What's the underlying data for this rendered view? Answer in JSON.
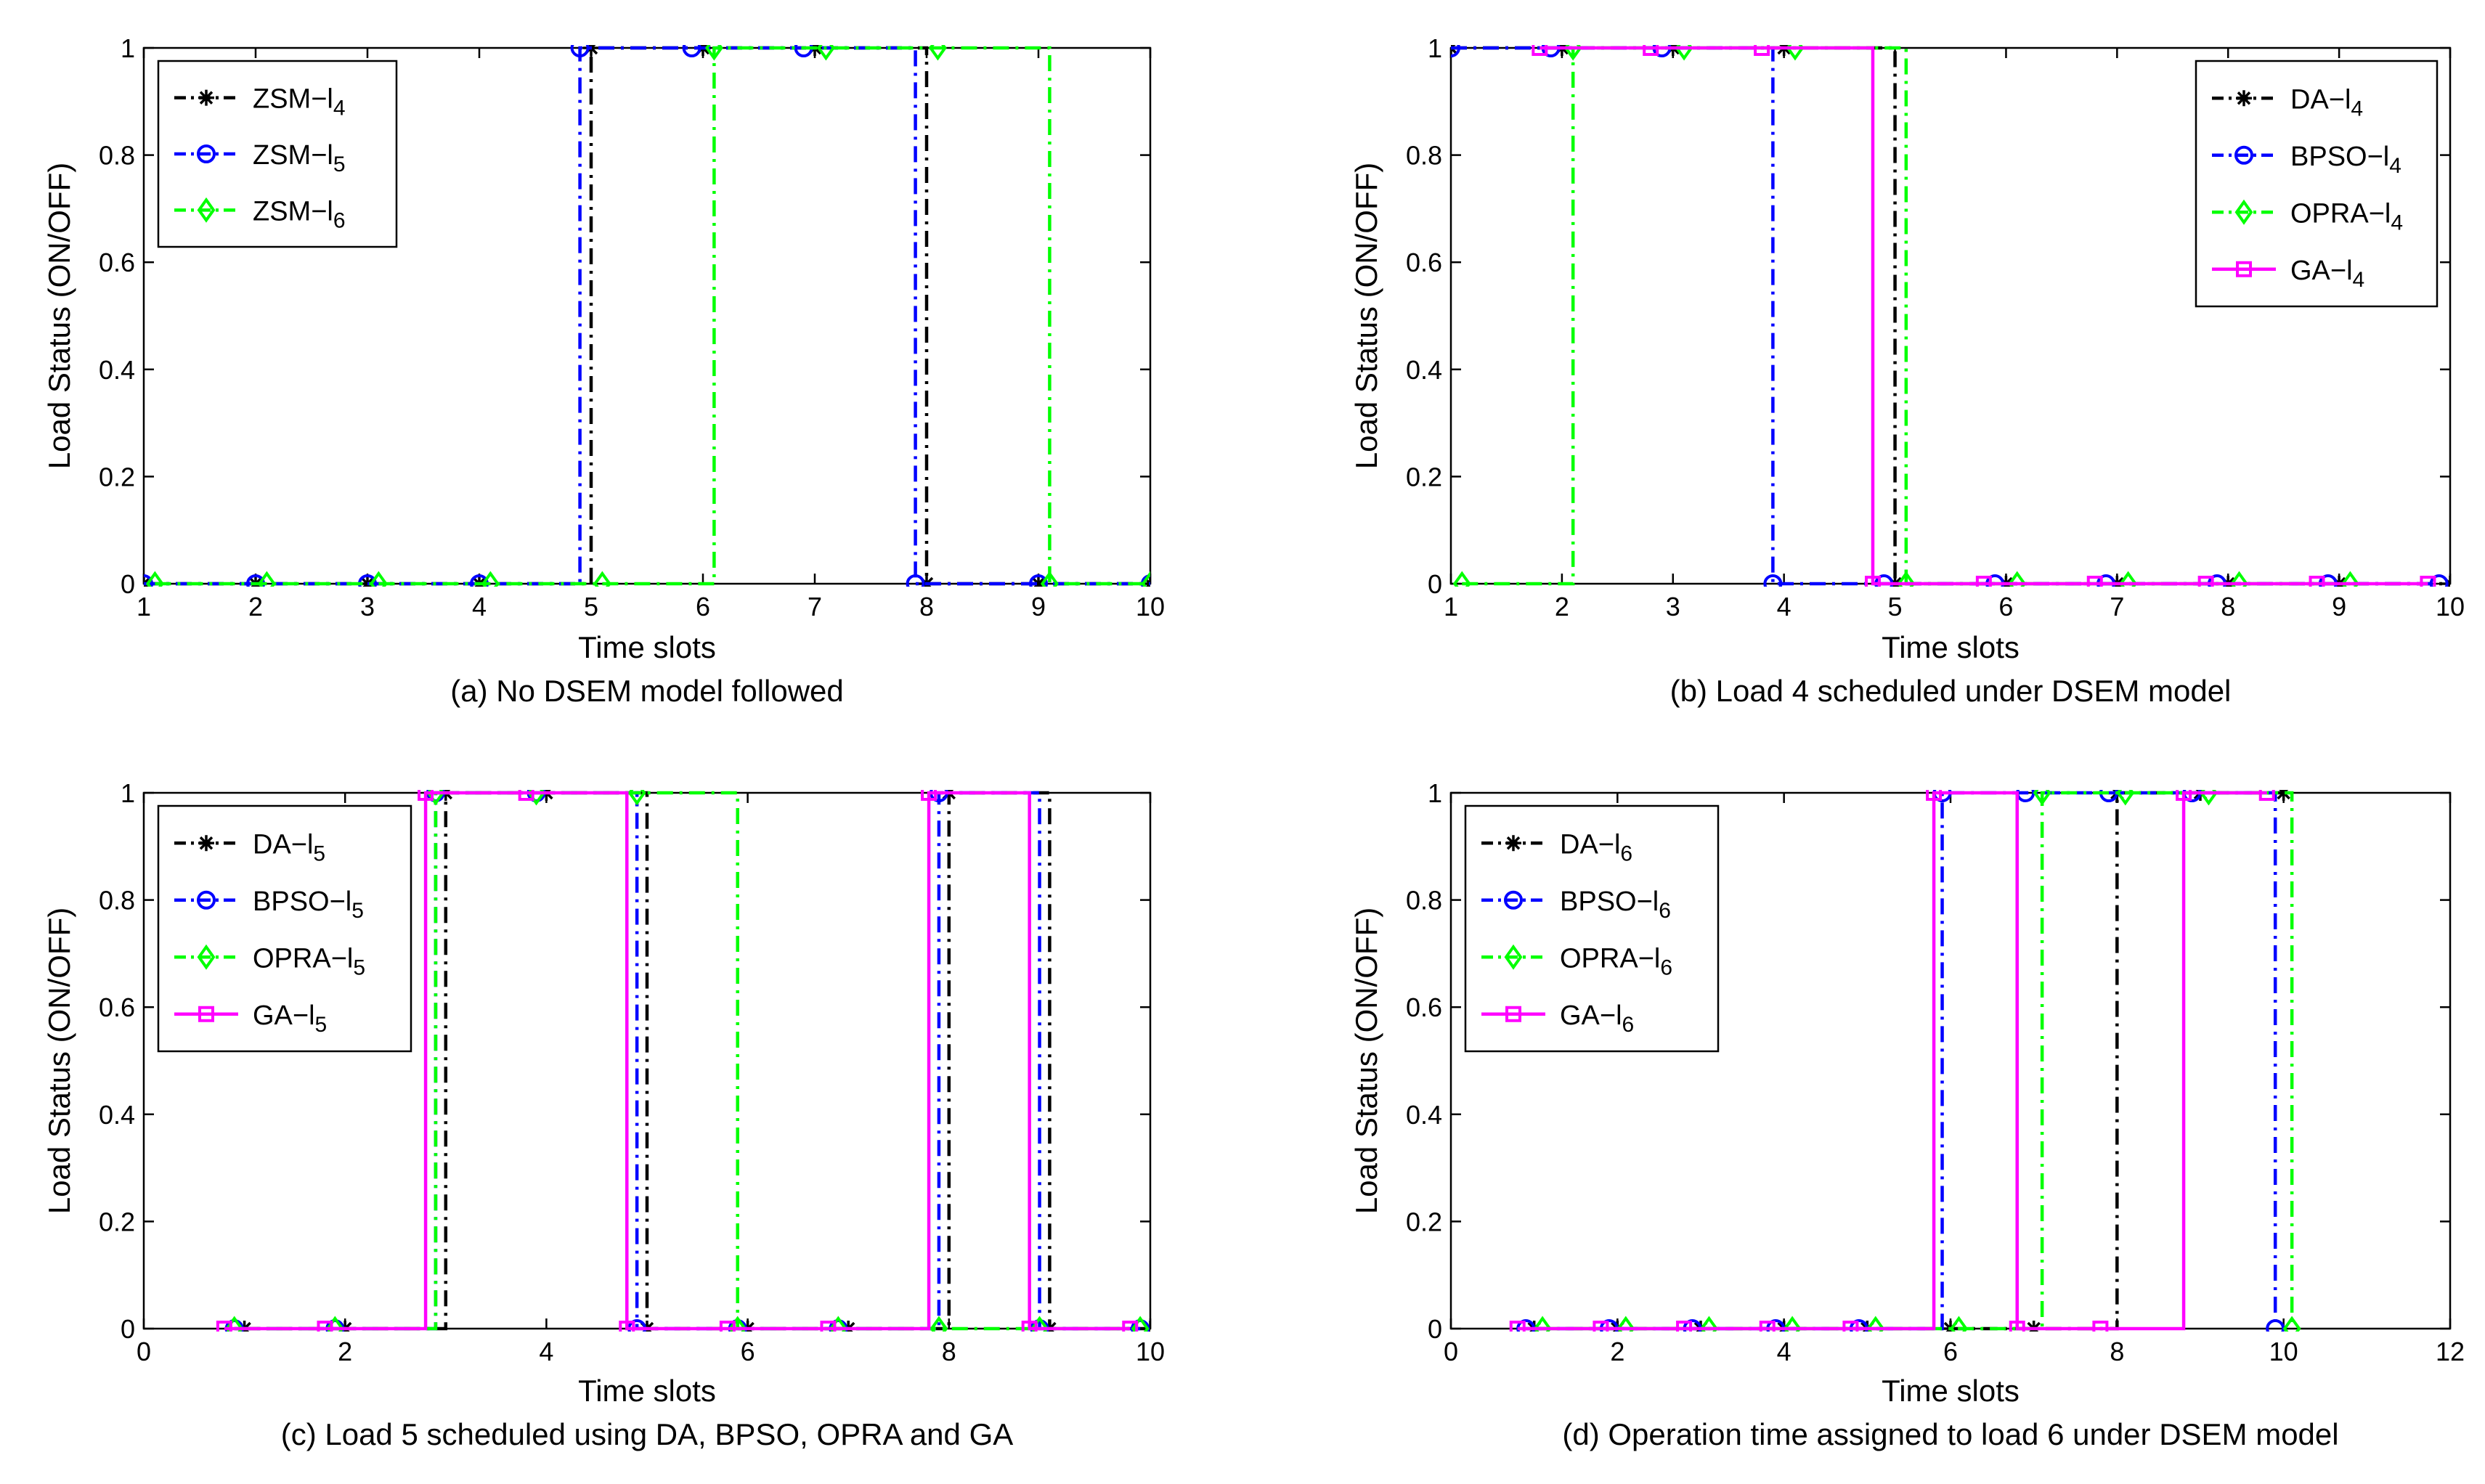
{
  "colors": {
    "black": "#000000",
    "blue": "#0000ff",
    "green": "#00ff00",
    "magenta": "#ff00ff",
    "axis": "#000000",
    "background": "#ffffff"
  },
  "chart_data": [
    {
      "id": "a",
      "type": "line",
      "step": true,
      "caption": "(a) No DSEM model followed",
      "xlabel": "Time slots",
      "ylabel": "Load Status (ON/OFF)",
      "xlim": [
        1,
        10
      ],
      "ylim": [
        0,
        1
      ],
      "xticks": [
        1,
        2,
        3,
        4,
        5,
        6,
        7,
        8,
        9,
        10
      ],
      "yticks": [
        0,
        0.2,
        0.4,
        0.6,
        0.8,
        1
      ],
      "legend_position": "top-left",
      "series": [
        {
          "name": "ZSM−l",
          "sub": "4",
          "color": "#000000",
          "marker": "star",
          "dash": "dashdot",
          "x": [
            1,
            2,
            3,
            4,
            5,
            6,
            7,
            8,
            9,
            10
          ],
          "y": [
            0,
            0,
            0,
            0,
            1,
            1,
            1,
            0,
            0,
            0
          ]
        },
        {
          "name": "ZSM−l",
          "sub": "5",
          "color": "#0000ff",
          "marker": "circle",
          "dash": "dashdot",
          "x": [
            1,
            2,
            3,
            4,
            4.9,
            5.9,
            6.9,
            7.9,
            9,
            10
          ],
          "y": [
            0,
            0,
            0,
            0,
            1,
            1,
            1,
            0,
            0,
            0
          ]
        },
        {
          "name": "ZSM−l",
          "sub": "6",
          "color": "#00ff00",
          "marker": "diamond",
          "dash": "dashdot",
          "x": [
            1.1,
            2.1,
            3.1,
            4.1,
            5.1,
            6.1,
            7.1,
            8.1,
            9.1,
            10
          ],
          "y": [
            0,
            0,
            0,
            0,
            0,
            1,
            1,
            1,
            0,
            0
          ]
        }
      ]
    },
    {
      "id": "b",
      "type": "line",
      "step": true,
      "caption": "(b) Load 4 scheduled under DSEM model",
      "xlabel": "Time slots",
      "ylabel": "Load Status (ON/OFF)",
      "xlim": [
        1,
        10
      ],
      "ylim": [
        0,
        1
      ],
      "xticks": [
        1,
        2,
        3,
        4,
        5,
        6,
        7,
        8,
        9,
        10
      ],
      "yticks": [
        0,
        0.2,
        0.4,
        0.6,
        0.8,
        1
      ],
      "legend_position": "top-right",
      "series": [
        {
          "name": "DA−l",
          "sub": "4",
          "color": "#000000",
          "marker": "star",
          "dash": "dashdot",
          "x": [
            1,
            2,
            3,
            4,
            5,
            6,
            7,
            8,
            9,
            10
          ],
          "y": [
            1,
            1,
            1,
            1,
            0,
            0,
            0,
            0,
            0,
            0
          ]
        },
        {
          "name": "BPSO−l",
          "sub": "4",
          "color": "#0000ff",
          "marker": "circle",
          "dash": "dashdot",
          "x": [
            1,
            1.9,
            2.9,
            3.9,
            4.9,
            5.9,
            6.9,
            7.9,
            8.9,
            9.9
          ],
          "y": [
            1,
            1,
            1,
            0,
            0,
            0,
            0,
            0,
            0,
            0
          ]
        },
        {
          "name": "OPRA−l",
          "sub": "4",
          "color": "#00ff00",
          "marker": "diamond",
          "dash": "dashdot",
          "x": [
            1.1,
            2.1,
            3.1,
            4.1,
            5.1,
            6.1,
            7.1,
            8.1,
            9.1
          ],
          "y": [
            0,
            1,
            1,
            1,
            0,
            0,
            0,
            0,
            0
          ]
        },
        {
          "name": "GA−l",
          "sub": "4",
          "color": "#ff00ff",
          "marker": "square",
          "dash": "solid",
          "x": [
            1.8,
            2.8,
            3.8,
            4.8,
            5.8,
            6.8,
            7.8,
            8.8,
            9.8
          ],
          "y": [
            1,
            1,
            1,
            0,
            0,
            0,
            0,
            0,
            0
          ]
        }
      ]
    },
    {
      "id": "c",
      "type": "line",
      "step": true,
      "caption": "(c) Load 5 scheduled using DA, BPSO, OPRA and GA",
      "xlabel": "Time slots",
      "ylabel": "Load Status (ON/OFF)",
      "xlim": [
        0,
        10
      ],
      "ylim": [
        0,
        1
      ],
      "xticks": [
        0,
        2,
        4,
        6,
        8,
        10
      ],
      "yticks": [
        0,
        0.2,
        0.4,
        0.6,
        0.8,
        1
      ],
      "legend_position": "top-left",
      "series": [
        {
          "name": "DA−l",
          "sub": "5",
          "color": "#000000",
          "marker": "star",
          "dash": "dashdot",
          "x": [
            1,
            2,
            3,
            4,
            5,
            6,
            7,
            8,
            9,
            10
          ],
          "y": [
            0,
            0,
            1,
            1,
            0,
            0,
            0,
            1,
            0,
            0
          ]
        },
        {
          "name": "BPSO−l",
          "sub": "5",
          "color": "#0000ff",
          "marker": "circle",
          "dash": "dashdot",
          "x": [
            0.9,
            1.9,
            2.9,
            3.9,
            4.9,
            5.9,
            6.9,
            7.9,
            8.9,
            9.9
          ],
          "y": [
            0,
            0,
            1,
            1,
            0,
            0,
            0,
            1,
            0,
            0
          ]
        },
        {
          "name": "OPRA−l",
          "sub": "5",
          "color": "#00ff00",
          "marker": "diamond",
          "dash": "dashdot",
          "x": [
            0.9,
            1.9,
            2.9,
            3.9,
            4.9,
            5.9,
            6.9,
            7.9,
            8.9,
            9.9
          ],
          "y": [
            0,
            0,
            1,
            1,
            1,
            0,
            0,
            0,
            0,
            0
          ]
        },
        {
          "name": "GA−l",
          "sub": "5",
          "color": "#ff00ff",
          "marker": "square",
          "dash": "solid",
          "x": [
            0.8,
            1.8,
            2.8,
            3.8,
            4.8,
            5.8,
            6.8,
            7.8,
            8.8,
            9.8
          ],
          "y": [
            0,
            0,
            1,
            1,
            0,
            0,
            0,
            1,
            0,
            0
          ]
        }
      ]
    },
    {
      "id": "d",
      "type": "line",
      "step": true,
      "caption": "(d) Operation time assigned to load 6 under DSEM model",
      "xlabel": "Time slots",
      "ylabel": "Load Status (ON/OFF)",
      "xlim": [
        0,
        12
      ],
      "ylim": [
        0,
        1
      ],
      "xticks": [
        0,
        2,
        4,
        6,
        8,
        10,
        12
      ],
      "yticks": [
        0,
        0.2,
        0.4,
        0.6,
        0.8,
        1
      ],
      "legend_position": "top-left",
      "series": [
        {
          "name": "DA−l",
          "sub": "6",
          "color": "#000000",
          "marker": "star",
          "dash": "dashdot",
          "x": [
            1,
            2,
            3,
            4,
            5,
            6,
            7,
            8,
            9,
            10
          ],
          "y": [
            0,
            0,
            0,
            0,
            0,
            0,
            0,
            1,
            1,
            1
          ]
        },
        {
          "name": "BPSO−l",
          "sub": "6",
          "color": "#0000ff",
          "marker": "circle",
          "dash": "dashdot",
          "x": [
            0.9,
            1.9,
            2.9,
            3.9,
            4.9,
            5.9,
            6.9,
            7.9,
            8.9,
            9.9
          ],
          "y": [
            0,
            0,
            0,
            0,
            0,
            1,
            1,
            1,
            1,
            0
          ]
        },
        {
          "name": "OPRA−l",
          "sub": "6",
          "color": "#00ff00",
          "marker": "diamond",
          "dash": "dashdot",
          "x": [
            1.1,
            2.1,
            3.1,
            4.1,
            5.1,
            6.1,
            7.1,
            8.1,
            9.1,
            10.1
          ],
          "y": [
            0,
            0,
            0,
            0,
            0,
            0,
            1,
            1,
            1,
            0
          ]
        },
        {
          "name": "GA−l",
          "sub": "6",
          "color": "#ff00ff",
          "marker": "square",
          "dash": "solid",
          "x": [
            0.8,
            1.8,
            2.8,
            3.8,
            4.8,
            5.8,
            6.8,
            7.8,
            8.8,
            9.8
          ],
          "y": [
            0,
            0,
            0,
            0,
            0,
            1,
            0,
            0,
            1,
            1
          ]
        }
      ]
    }
  ]
}
